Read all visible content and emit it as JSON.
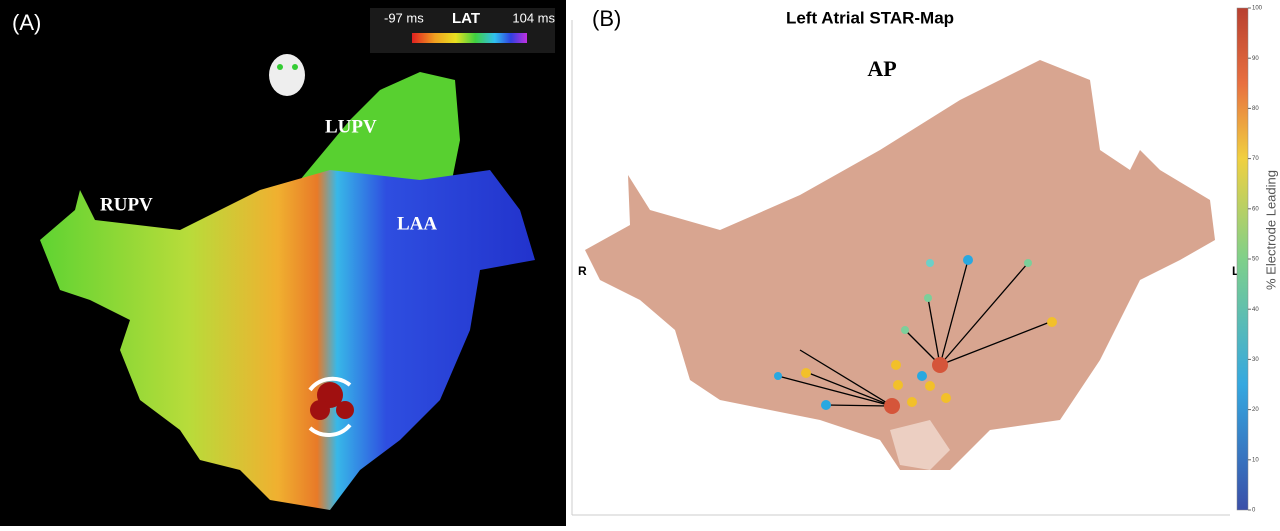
{
  "panel_a": {
    "label": "(A)",
    "lat_min": "-97 ms",
    "lat_title": "LAT",
    "lat_max": "104 ms",
    "regions": [
      "LUPV",
      "RUPV",
      "LAA"
    ]
  },
  "panel_b": {
    "label": "(B)",
    "title": "Left Atrial STAR-Map",
    "view": "AP",
    "left_side": "R",
    "right_side": "L",
    "colorbar": {
      "title": "% Electrode Leading",
      "ticks": [
        0,
        10,
        20,
        30,
        40,
        50,
        60,
        70,
        80,
        90,
        100
      ]
    }
  }
}
